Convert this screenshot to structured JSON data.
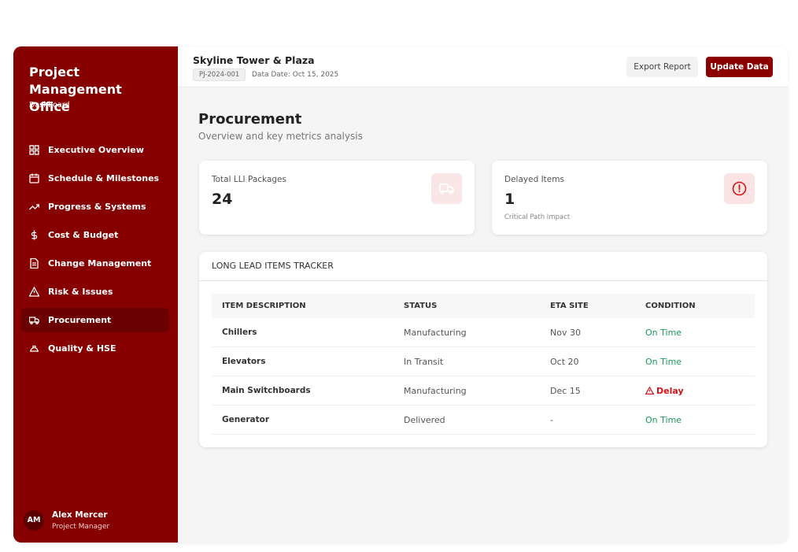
{
  "sidebar": {
    "title": "Project Management Office",
    "subtitle": "Dashboard",
    "nav": [
      "Executive Overview",
      "Schedule & Milestones",
      "Progress & Systems",
      "Cost & Budget",
      "Change Management",
      "Risk & Issues",
      "Procurement",
      "Quality & HSE"
    ],
    "user": {
      "initials": "AM",
      "name": "Alex Mercer",
      "role": "Project Manager"
    }
  },
  "header": {
    "project": "Skyline Tower & Plaza",
    "code": "PJ-2024-001",
    "data_date": "Data Date: Oct 15, 2025",
    "buttons": [
      "Export Report",
      "Update Data"
    ]
  },
  "page": {
    "title": "Procurement",
    "subtitle": "Overview and key metrics analysis"
  },
  "cards": [
    {
      "label": "Total LLI Packages",
      "value": 24
    },
    {
      "label": "Delayed Items",
      "value": 1,
      "note": "Critical Path Impact"
    }
  ],
  "table": {
    "title": "LONG LEAD ITEMS TRACKER",
    "columns": [
      "ITEM DESCRIPTION",
      "STATUS",
      "ETA SITE",
      "CONDITION"
    ],
    "rows": [
      [
        "Chillers",
        "Manufacturing",
        "Nov 30",
        "On Time"
      ],
      [
        "Elevators",
        "In Transit",
        "Oct 20",
        "On Time"
      ],
      [
        "Main Switchboards",
        "Manufacturing",
        "Dec 15",
        "Delay"
      ],
      [
        "Generator",
        "Delivered",
        "-",
        "On Time"
      ]
    ],
    "condition_colors": [
      "#1a9a5a",
      "#1a9a5a",
      "#d0141c",
      "#1a9a5a"
    ]
  }
}
